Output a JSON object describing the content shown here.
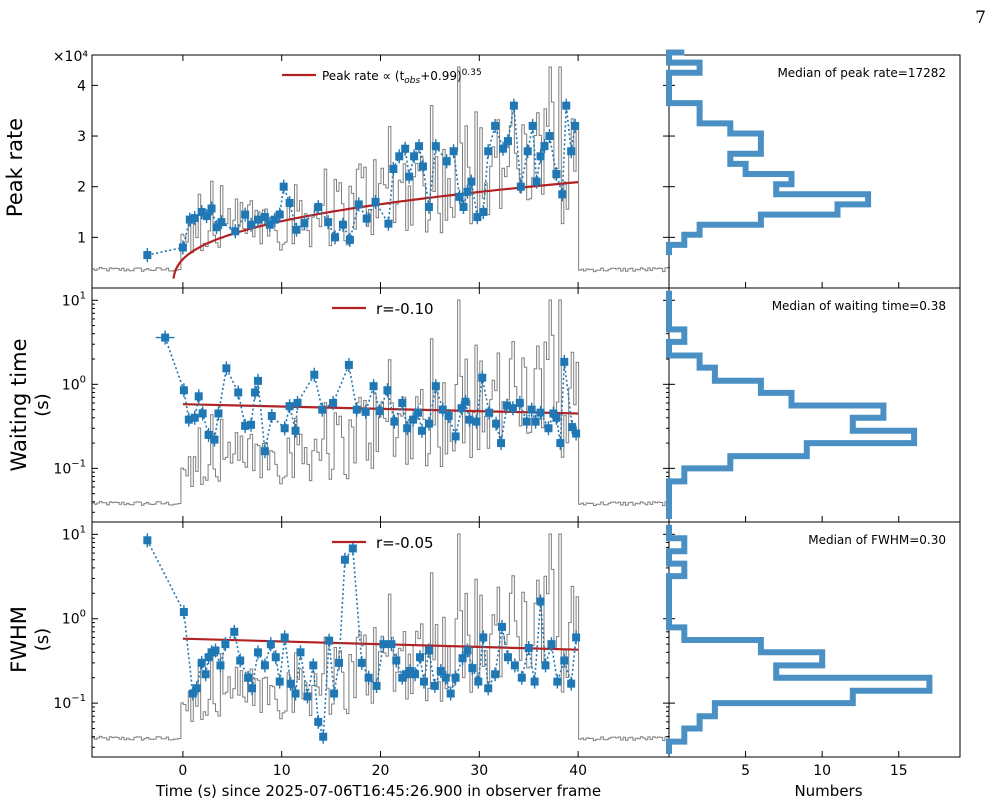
{
  "page_number": "7",
  "colors": {
    "series": "#1f77b4",
    "fit": "#b22222",
    "lightcurve": "#7f7f7f",
    "hist": "#4a90c4"
  },
  "chart_data": [
    {
      "type": "scatter",
      "panel": "peak",
      "ylabel": "Peak rate",
      "y_multiplier_label": "×10⁴",
      "y_scale": "linear",
      "ylim": [
        0,
        4.6
      ],
      "yticks": [
        1,
        2,
        3,
        4
      ],
      "ytick_labels": [
        "1",
        "2",
        "3",
        "4"
      ],
      "fit_label": "Peak rate ∝ (t",
      "fit_label_sub": "obs",
      "fit_label_mid": "+0.99)",
      "fit_label_sup": "0.35",
      "fit": {
        "offset": 0.99,
        "index": 0.35,
        "norm": 0.57,
        "x_start": -0.95,
        "x_end": 40
      },
      "x": [
        -3.6,
        0,
        0.7,
        1.2,
        1.9,
        2.4,
        2.9,
        3.4,
        3.9,
        5.3,
        6.3,
        6.9,
        7.6,
        8.3,
        8.8,
        9.3,
        9.8,
        10.2,
        10.8,
        11.5,
        12.3,
        13.7,
        14.7,
        15.4,
        16.2,
        16.9,
        17.8,
        18.6,
        19.5,
        20.8,
        21.3,
        21.9,
        22.5,
        22.9,
        23.4,
        23.9,
        24.3,
        24.9,
        25.6,
        26.7,
        27.4,
        28.0,
        28.4,
        28.8,
        29.2,
        29.8,
        30.4,
        30.9,
        31.6,
        32.4,
        32.9,
        33.5,
        34.2,
        34.9,
        35.4,
        35.8,
        36.2,
        36.6,
        37.1,
        37.8,
        38.4,
        38.8,
        39.3,
        39.7
      ],
      "values": [
        0.65,
        0.8,
        1.35,
        1.38,
        1.5,
        1.42,
        1.57,
        1.2,
        1.3,
        1.12,
        1.45,
        1.25,
        1.35,
        1.4,
        1.25,
        1.35,
        1.45,
        2.0,
        1.68,
        1.15,
        1.28,
        1.6,
        1.3,
        1.0,
        1.25,
        0.95,
        1.65,
        1.37,
        1.7,
        1.27,
        2.35,
        2.6,
        2.75,
        2.2,
        2.6,
        2.8,
        2.4,
        1.6,
        2.8,
        2.5,
        2.7,
        1.8,
        1.6,
        1.9,
        2.1,
        1.4,
        1.5,
        2.7,
        3.2,
        2.75,
        2.9,
        3.6,
        2.0,
        2.7,
        3.2,
        2.1,
        2.6,
        2.8,
        3.0,
        2.25,
        1.85,
        3.6,
        2.7,
        3.2
      ],
      "median_label": "Median of peak rate=17282"
    },
    {
      "type": "scatter",
      "panel": "waiting",
      "ylabel": "Waiting time",
      "ylabel_unit": "(s)",
      "y_scale": "log",
      "ylim": [
        0.023,
        14
      ],
      "yticks": [
        0.1,
        1,
        10
      ],
      "ytick_base": [
        "10",
        "10",
        "10"
      ],
      "ytick_exp": [
        "−1",
        "0",
        "1"
      ],
      "fit_label": "r=-0.10",
      "fit_line": {
        "x": [
          0,
          40
        ],
        "y": [
          0.58,
          0.45
        ]
      },
      "x": [
        -1.8,
        0.1,
        0.6,
        1.2,
        1.6,
        2.0,
        2.6,
        3.2,
        3.6,
        4.4,
        5.6,
        6.3,
        6.9,
        7.3,
        7.6,
        8.3,
        9.0,
        10.3,
        10.8,
        11.4,
        11.6,
        13.3,
        14.1,
        15.2,
        16.8,
        17.6,
        18.5,
        19.3,
        19.9,
        20.7,
        21.4,
        22.2,
        22.7,
        23.3,
        23.8,
        24.2,
        24.9,
        25.6,
        26.3,
        26.9,
        27.6,
        28.2,
        28.6,
        29.0,
        29.7,
        30.3,
        31.0,
        31.7,
        32.2,
        32.8,
        33.4,
        34.1,
        34.8,
        35.3,
        35.7,
        36.2,
        37.0,
        37.5,
        37.8,
        38.2,
        38.6,
        39.4,
        39.8
      ],
      "values": [
        3.6,
        0.85,
        0.38,
        0.4,
        0.72,
        0.45,
        0.25,
        0.22,
        0.45,
        1.55,
        0.8,
        0.32,
        0.33,
        0.8,
        1.1,
        0.16,
        0.42,
        0.3,
        0.55,
        0.28,
        0.6,
        1.3,
        0.5,
        0.6,
        1.7,
        0.5,
        0.47,
        0.95,
        0.48,
        0.85,
        0.36,
        0.6,
        0.3,
        0.38,
        0.46,
        0.28,
        0.34,
        0.95,
        0.5,
        0.42,
        0.24,
        0.52,
        0.62,
        0.38,
        0.36,
        1.2,
        0.46,
        0.34,
        0.2,
        0.56,
        0.52,
        0.6,
        0.36,
        0.5,
        0.36,
        0.46,
        0.3,
        0.45,
        0.4,
        0.2,
        1.85,
        0.31,
        0.26
      ],
      "xerr": [
        0.95,
        0,
        0,
        0,
        0,
        0,
        0,
        0,
        0,
        0.35,
        0,
        0,
        0,
        0,
        0,
        0,
        0,
        0,
        0,
        0,
        0,
        0,
        0,
        0,
        0.35,
        0,
        0,
        0,
        0,
        0,
        0,
        0,
        0,
        0,
        0,
        0,
        0,
        0,
        0,
        0,
        0,
        0,
        0,
        0,
        0,
        0,
        0,
        0,
        0,
        0,
        0,
        0,
        0,
        0,
        0,
        0,
        0,
        0,
        0,
        0,
        0.35,
        0,
        0
      ],
      "median_label": "Median of waiting time=0.38"
    },
    {
      "type": "scatter",
      "panel": "fwhm",
      "ylabel": "FWHM",
      "ylabel_unit": "(s)",
      "y_scale": "log",
      "ylim": [
        0.023,
        14
      ],
      "yticks": [
        0.1,
        1,
        10
      ],
      "ytick_base": [
        "10",
        "10",
        "10"
      ],
      "ytick_exp": [
        "−1",
        "0",
        "1"
      ],
      "fit_label": "r=-0.05",
      "fit_line": {
        "x": [
          0,
          40
        ],
        "y": [
          0.58,
          0.43
        ]
      },
      "x": [
        -3.6,
        0.1,
        1.0,
        1.4,
        1.9,
        2.3,
        2.6,
        2.9,
        3.3,
        3.8,
        4.3,
        5.2,
        5.8,
        6.6,
        7.0,
        7.6,
        8.3,
        8.9,
        9.4,
        9.8,
        10.3,
        10.9,
        11.4,
        11.9,
        12.6,
        13.2,
        13.7,
        14.2,
        14.8,
        15.3,
        15.8,
        16.4,
        17.2,
        18.1,
        18.8,
        19.6,
        20.3,
        21.1,
        21.6,
        22.2,
        22.6,
        23.0,
        23.5,
        24.0,
        24.4,
        24.9,
        25.5,
        26.1,
        26.6,
        27.1,
        27.6,
        28.3,
        28.8,
        29.3,
        29.9,
        30.4,
        30.9,
        31.6,
        32.3,
        32.9,
        33.6,
        34.3,
        35.0,
        35.6,
        36.2,
        36.7,
        37.3,
        37.9,
        38.6,
        39.3,
        39.8
      ],
      "values": [
        8.5,
        1.2,
        0.13,
        0.15,
        0.3,
        0.22,
        0.35,
        0.4,
        0.42,
        0.28,
        0.5,
        0.7,
        0.32,
        0.2,
        0.15,
        0.4,
        0.28,
        0.5,
        0.35,
        0.18,
        0.6,
        0.17,
        0.13,
        0.4,
        0.12,
        0.28,
        0.06,
        0.04,
        0.55,
        0.13,
        0.3,
        5.0,
        6.8,
        0.3,
        0.2,
        0.16,
        0.5,
        0.5,
        0.32,
        0.2,
        0.22,
        0.24,
        0.22,
        0.35,
        0.18,
        0.42,
        0.16,
        0.24,
        0.2,
        0.13,
        0.2,
        0.34,
        0.42,
        0.26,
        0.18,
        0.6,
        0.15,
        0.22,
        0.8,
        0.35,
        0.28,
        0.2,
        0.45,
        0.18,
        1.6,
        0.28,
        0.5,
        0.18,
        0.32,
        0.17,
        0.6
      ],
      "median_label": "Median of FWHM=0.30"
    }
  ],
  "shared_x": {
    "xlabel": "Time (s) since 2025-07-06T16:45:26.900 in observer frame",
    "xlim": [
      -9.2,
      49.2
    ],
    "xticks": [
      0,
      10,
      20,
      30,
      40
    ],
    "xtick_labels": [
      "0",
      "10",
      "20",
      "30",
      "40"
    ]
  },
  "histograms": {
    "xlabel": "Numbers",
    "xlim": [
      0,
      19
    ],
    "xticks": [
      5,
      10,
      15
    ],
    "xtick_labels": [
      "5",
      "10",
      "15"
    ],
    "peak": {
      "edges": [
        0.65,
        0.85,
        1.05,
        1.25,
        1.45,
        1.65,
        1.85,
        2.05,
        2.25,
        2.45,
        2.65,
        2.85,
        3.05,
        3.25,
        3.45,
        3.65,
        3.85,
        4.05,
        4.25,
        4.45,
        4.65
      ],
      "counts": [
        0,
        1,
        2,
        6,
        11,
        13,
        7,
        8,
        5,
        4,
        6,
        6,
        4,
        2,
        2,
        0,
        0,
        0,
        2,
        0,
        1
      ]
    },
    "waiting": {
      "edges": [
        0.025,
        0.035,
        0.05,
        0.07,
        0.1,
        0.14,
        0.2,
        0.28,
        0.4,
        0.56,
        0.79,
        1.1,
        1.58,
        2.2,
        3.2,
        4.5,
        6.3,
        9.0,
        13
      ],
      "counts": [
        0,
        0,
        0,
        1,
        4,
        9,
        16,
        12,
        14,
        8,
        6,
        3,
        2,
        0,
        1,
        0,
        0,
        0
      ]
    },
    "fwhm": {
      "edges": [
        0.025,
        0.035,
        0.05,
        0.07,
        0.1,
        0.14,
        0.2,
        0.28,
        0.4,
        0.56,
        0.79,
        1.1,
        1.58,
        2.2,
        3.2,
        4.5,
        6.3,
        9.0,
        13
      ],
      "counts": [
        0,
        1,
        2,
        3,
        12,
        17,
        7,
        10,
        6,
        1,
        0,
        0,
        0,
        0,
        1,
        0,
        1,
        0
      ]
    }
  }
}
